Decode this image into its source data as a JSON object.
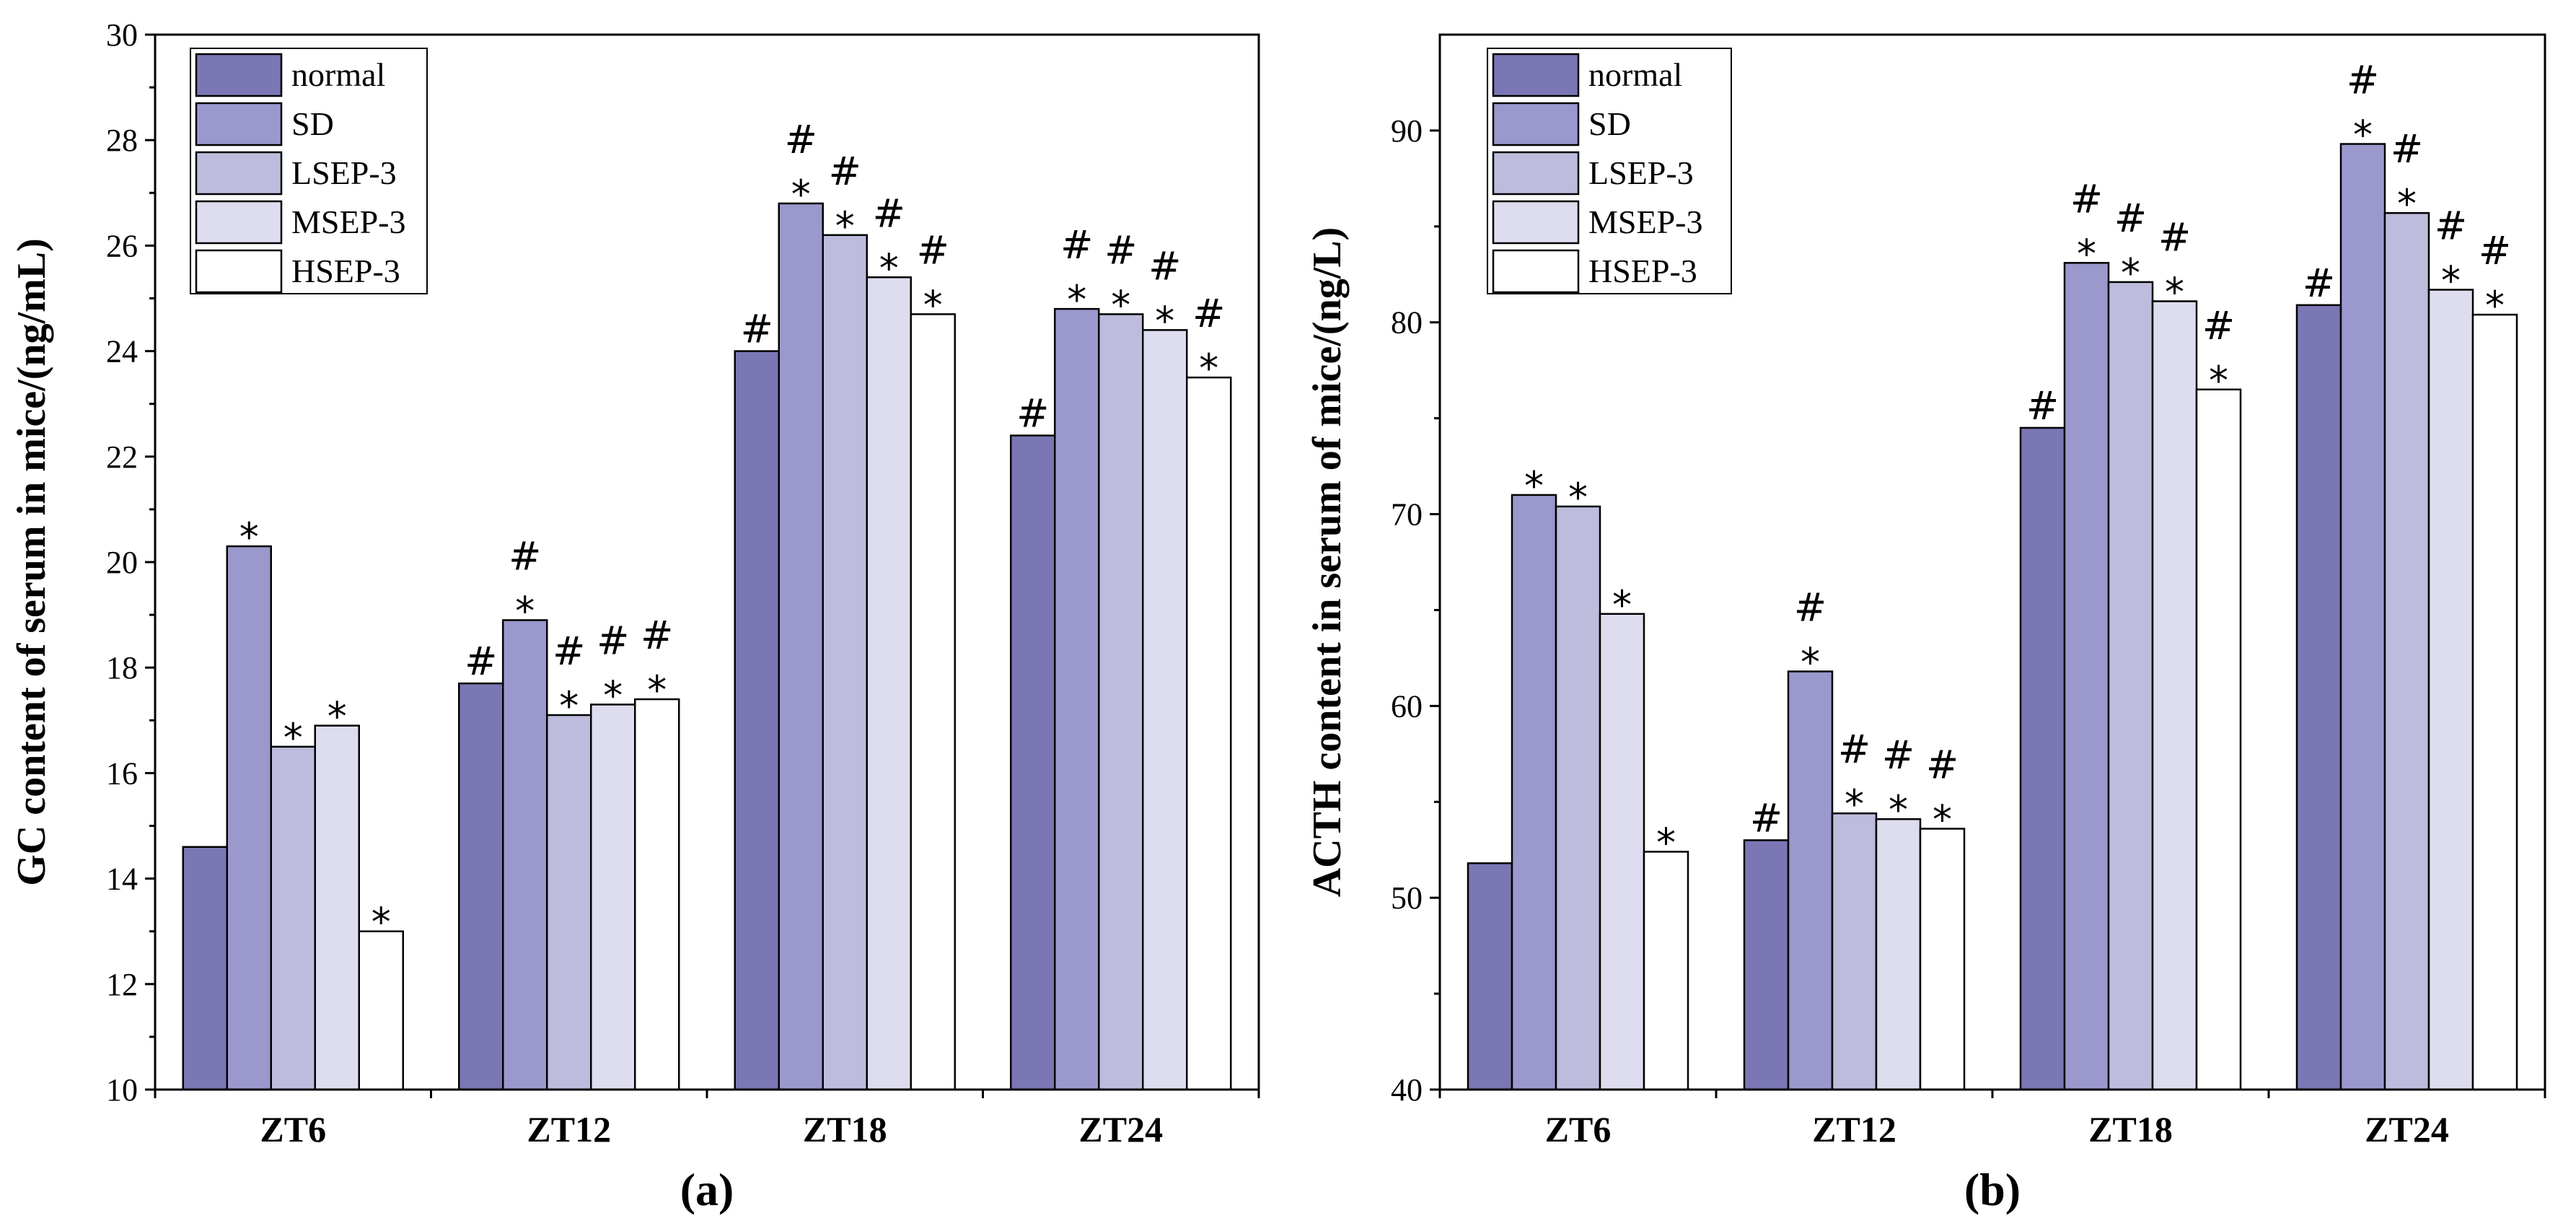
{
  "chart_data": [
    {
      "type": "bar",
      "panel_label": "(a)",
      "ylabel": "GC content of serum in mice/(ng/mL)",
      "xlabel": "",
      "ylim": [
        10,
        30
      ],
      "yticks": [
        10,
        12,
        14,
        16,
        18,
        20,
        22,
        24,
        26,
        28,
        30
      ],
      "categories": [
        "ZT6",
        "ZT12",
        "ZT18",
        "ZT24"
      ],
      "legend_position": "top-left",
      "series": [
        {
          "name": "normal",
          "color": "#7b77b5",
          "values": [
            14.6,
            17.7,
            24.0,
            22.4
          ],
          "annotations": [
            "",
            "#",
            "#",
            "#"
          ]
        },
        {
          "name": "SD",
          "color": "#9a98cc",
          "values": [
            20.3,
            18.9,
            26.8,
            24.8
          ],
          "annotations": [
            "*",
            "*#",
            "*#",
            "*#"
          ]
        },
        {
          "name": "LSEP-3",
          "color": "#bdbcdd",
          "values": [
            16.5,
            17.1,
            26.2,
            24.7
          ],
          "annotations": [
            "*",
            "*#",
            "*#",
            "*#"
          ]
        },
        {
          "name": "MSEP-3",
          "color": "#deddef",
          "values": [
            16.9,
            17.3,
            25.4,
            24.4
          ],
          "annotations": [
            "*",
            "*#",
            "*#",
            "*#"
          ]
        },
        {
          "name": "HSEP-3",
          "color": "#ffffff",
          "values": [
            13.0,
            17.4,
            24.7,
            23.5
          ],
          "annotations": [
            "*",
            "*#",
            "*#",
            "*#"
          ]
        }
      ]
    },
    {
      "type": "bar",
      "panel_label": "(b)",
      "ylabel": "ACTH content in serum of mice/(ng/L)",
      "xlabel": "",
      "ylim": [
        40,
        95
      ],
      "yticks": [
        40,
        50,
        60,
        70,
        80,
        90
      ],
      "categories": [
        "ZT6",
        "ZT12",
        "ZT18",
        "ZT24"
      ],
      "legend_position": "top-left",
      "series": [
        {
          "name": "normal",
          "color": "#7b77b5",
          "values": [
            51.8,
            53.0,
            74.5,
            80.9
          ],
          "annotations": [
            "",
            "#",
            "#",
            "#"
          ]
        },
        {
          "name": "SD",
          "color": "#9a98cc",
          "values": [
            71.0,
            61.8,
            83.1,
            89.3
          ],
          "annotations": [
            "*",
            "*#",
            "*#",
            "*#"
          ]
        },
        {
          "name": "LSEP-3",
          "color": "#bdbcdd",
          "values": [
            70.4,
            54.4,
            82.1,
            85.7
          ],
          "annotations": [
            "*",
            "*#",
            "*#",
            "*#"
          ]
        },
        {
          "name": "MSEP-3",
          "color": "#deddef",
          "values": [
            64.8,
            54.1,
            81.1,
            81.7
          ],
          "annotations": [
            "*",
            "*#",
            "*#",
            "*#"
          ]
        },
        {
          "name": "HSEP-3",
          "color": "#ffffff",
          "values": [
            52.4,
            53.6,
            76.5,
            80.4
          ],
          "annotations": [
            "*",
            "*#",
            "*#",
            "*#"
          ]
        }
      ]
    }
  ]
}
